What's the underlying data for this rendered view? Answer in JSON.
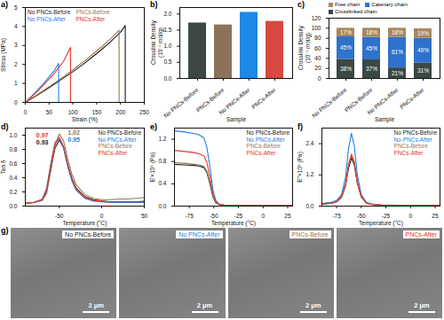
{
  "chart_data": [
    {
      "type": "line",
      "title": "a)",
      "xlabel": "Strain (%)",
      "ylabel": "Stress (MPa)",
      "xlim": [
        0,
        250
      ],
      "xticks": [
        0,
        50,
        100,
        150,
        200,
        250
      ],
      "ylim": [
        0,
        5
      ],
      "yticks": [
        0,
        1,
        2,
        3,
        4,
        5
      ],
      "legend": "top-left",
      "series": [
        {
          "name": "No PNCs-Before",
          "color": "#1a1a1a",
          "x": [
            0,
            20,
            40,
            60,
            80,
            100,
            120,
            140,
            160,
            180,
            200,
            210,
            210
          ],
          "values": [
            0,
            0.3,
            0.62,
            0.95,
            1.28,
            1.62,
            1.98,
            2.37,
            2.78,
            3.22,
            3.7,
            4.05,
            0
          ]
        },
        {
          "name": "PNCs-Before",
          "color": "#9a7650",
          "x": [
            0,
            20,
            40,
            60,
            80,
            100,
            120,
            140,
            160,
            180,
            197,
            197
          ],
          "values": [
            0,
            0.32,
            0.66,
            1.0,
            1.35,
            1.72,
            2.1,
            2.5,
            2.92,
            3.37,
            3.8,
            0
          ]
        },
        {
          "name": "No PNCs-After",
          "color": "#1f80e8",
          "x": [
            0,
            20,
            40,
            60,
            70,
            70
          ],
          "values": [
            0,
            0.5,
            1.05,
            1.65,
            2.05,
            0
          ]
        },
        {
          "name": "PNCs-After",
          "color": "#e8352b",
          "x": [
            0,
            20,
            40,
            60,
            80,
            95,
            95
          ],
          "values": [
            0,
            0.45,
            0.95,
            1.5,
            2.15,
            2.9,
            0
          ]
        }
      ]
    },
    {
      "type": "bar",
      "title": "b)",
      "xlabel": "Sample",
      "ylabel": "Crosslink Density (10⁻⁴ mol/g)",
      "categories": [
        "No PNCs-Before",
        "PNCs-Before",
        "No PNCs-After",
        "PNCs-After"
      ],
      "values": [
        1.72,
        1.66,
        2.05,
        1.77
      ],
      "colors": [
        "#3b4846",
        "#8c7258",
        "#1f88e8",
        "#d9483e"
      ],
      "ylim": [
        0,
        2.2
      ],
      "yticks": [
        {
          "value": 0,
          "label": "0.0"
        },
        {
          "value": 0.5,
          "label": "0.5"
        },
        {
          "value": 1,
          "label": "1.0"
        },
        {
          "value": 1.5,
          "label": "1.5"
        },
        {
          "value": 2,
          "label": "2.0"
        }
      ]
    },
    {
      "type": "bar",
      "stacked": true,
      "data_labels": true,
      "title": "c)",
      "xlabel": "Sample",
      "ylabel": "Crosslink Density (10⁻⁴ mol/g)",
      "categories": [
        "No PNCs-Before",
        "PNCs-Before",
        "No PNCs-After",
        "PNCs-After"
      ],
      "ylim": [
        0,
        120
      ],
      "yticks": [
        0,
        20,
        40,
        60,
        80,
        100,
        120
      ],
      "legend": "top",
      "series": [
        {
          "name": "Crosslinked chain",
          "color": "#3b4846",
          "values": [
            38,
            37,
            21,
            31
          ],
          "value_labels": [
            "38%",
            "37%",
            "21%",
            "31%"
          ]
        },
        {
          "name": "Catenary chain",
          "color": "#2f72cc",
          "values": [
            45,
            45,
            61,
            49
          ],
          "value_labels": [
            "45%",
            "45%",
            "61%",
            "49%"
          ]
        },
        {
          "name": "Free chain",
          "color": "#a8875e",
          "values": [
            17,
            18,
            18,
            19
          ],
          "value_labels": [
            "17%",
            "18%",
            "18%",
            "19%"
          ]
        }
      ]
    },
    {
      "type": "line",
      "title": "d)",
      "xlabel": "Temperature (°C)",
      "ylabel": "Tan δ",
      "xlim": [
        -90,
        50
      ],
      "xticks": [
        -50,
        0,
        50
      ],
      "ylim": [
        0,
        1.1
      ],
      "yticks": [
        {
          "value": 0,
          "label": "0.0"
        },
        {
          "value": 0.2,
          "label": "0.2"
        },
        {
          "value": 0.4,
          "label": "0.4"
        },
        {
          "value": 0.6,
          "label": "0.6"
        },
        {
          "value": 0.8,
          "label": "0.8"
        },
        {
          "value": 1,
          "label": "1.0"
        }
      ],
      "legend": "top-right",
      "x": [
        -90,
        -80,
        -70,
        -65,
        -60,
        -55,
        -50,
        -45,
        -40,
        -35,
        -30,
        -20,
        -10,
        0,
        10,
        20,
        30,
        40,
        50
      ],
      "series": [
        {
          "name": "No PNCs-Before",
          "color": "#1a1a1a",
          "values": [
            0.04,
            0.05,
            0.09,
            0.2,
            0.52,
            0.82,
            0.93,
            0.83,
            0.58,
            0.38,
            0.25,
            0.13,
            0.09,
            0.07,
            0.06,
            0.06,
            0.06,
            0.06,
            0.07
          ]
        },
        {
          "name": "No PNCs-After",
          "color": "#1f80e8",
          "values": [
            0.04,
            0.05,
            0.1,
            0.25,
            0.6,
            0.88,
            0.95,
            0.82,
            0.55,
            0.35,
            0.22,
            0.11,
            0.07,
            0.06,
            0.05,
            0.05,
            0.05,
            0.05,
            0.05
          ]
        },
        {
          "name": "PNCs-Before",
          "color": "#9a7650",
          "values": [
            0.04,
            0.05,
            0.08,
            0.18,
            0.5,
            0.85,
            1.02,
            0.92,
            0.66,
            0.44,
            0.3,
            0.16,
            0.11,
            0.09,
            0.09,
            0.1,
            0.1,
            0.11,
            0.12
          ]
        },
        {
          "name": "PNCs-After",
          "color": "#e8352b",
          "values": [
            0.04,
            0.05,
            0.09,
            0.22,
            0.58,
            0.9,
            0.97,
            0.84,
            0.58,
            0.37,
            0.24,
            0.12,
            0.08,
            0.07,
            0.06,
            0.06,
            0.06,
            0.06,
            0.06
          ]
        }
      ],
      "annotations": [
        {
          "text": "0.97",
          "x": -70,
          "y": 1.0,
          "color": "#e8352b"
        },
        {
          "text": "0.93",
          "x": -70,
          "y": 0.9,
          "color": "#1a1a1a"
        },
        {
          "text": "1.02",
          "x": -33,
          "y": 1.04,
          "color": "#9a7650"
        },
        {
          "text": "0.95",
          "x": -33,
          "y": 0.94,
          "color": "#1f80e8"
        }
      ]
    },
    {
      "type": "line",
      "title": "e)",
      "xlabel": "Temperature (°C)",
      "ylabel": "E'×10⁹ (Pa)",
      "xlim": [
        -90,
        30
      ],
      "xticks": [
        -75,
        -50,
        -25,
        0,
        25
      ],
      "ylim": [
        0,
        1.4
      ],
      "yticks": [
        {
          "value": 0,
          "label": "0.0"
        },
        {
          "value": 0.4,
          "label": "0.4"
        },
        {
          "value": 0.8,
          "label": "0.8"
        },
        {
          "value": 1.2,
          "label": "1.2"
        }
      ],
      "legend": "top-right",
      "x": [
        -90,
        -80,
        -70,
        -65,
        -60,
        -57,
        -54,
        -51,
        -48,
        -45,
        -40,
        -30,
        -20,
        -10,
        0,
        10,
        20,
        30
      ],
      "series": [
        {
          "name": "No PNCs-Before",
          "color": "#1a1a1a",
          "values": [
            0.75,
            0.74,
            0.73,
            0.72,
            0.69,
            0.6,
            0.4,
            0.17,
            0.06,
            0.03,
            0.02,
            0.015,
            0.01,
            0.01,
            0.01,
            0.01,
            0.01,
            0.01
          ]
        },
        {
          "name": "No PNCs-After",
          "color": "#1f80e8",
          "values": [
            1.35,
            1.33,
            1.3,
            1.28,
            1.22,
            1.05,
            0.7,
            0.3,
            0.1,
            0.04,
            0.02,
            0.015,
            0.01,
            0.01,
            0.01,
            0.01,
            0.01,
            0.01
          ]
        },
        {
          "name": "PNCs-Before",
          "color": "#9a7650",
          "values": [
            0.78,
            0.77,
            0.75,
            0.74,
            0.71,
            0.62,
            0.42,
            0.18,
            0.06,
            0.03,
            0.02,
            0.015,
            0.01,
            0.01,
            0.01,
            0.01,
            0.01,
            0.01
          ]
        },
        {
          "name": "PNCs-After",
          "color": "#e8352b",
          "values": [
            1.0,
            0.98,
            0.96,
            0.94,
            0.9,
            0.78,
            0.52,
            0.22,
            0.08,
            0.03,
            0.02,
            0.015,
            0.01,
            0.01,
            0.01,
            0.01,
            0.01,
            0.01
          ]
        }
      ]
    },
    {
      "type": "line",
      "title": "f)",
      "xlabel": "Temperature (°C)",
      "ylabel": "E''×10⁸ (Pa)",
      "xlim": [
        -90,
        30
      ],
      "xticks": [
        -75,
        -50,
        -25,
        0,
        25
      ],
      "ylim": [
        0,
        3.0
      ],
      "yticks": [
        {
          "value": 0,
          "label": "0.0"
        },
        {
          "value": 1.2,
          "label": "1.2"
        },
        {
          "value": 2.4,
          "label": "2.4"
        }
      ],
      "legend": "top-right",
      "x": [
        -90,
        -80,
        -75,
        -70,
        -66,
        -63,
        -60,
        -57,
        -54,
        -50,
        -45,
        -40,
        -30,
        -20,
        -10,
        0,
        10,
        20,
        30
      ],
      "series": [
        {
          "name": "No PNCs-Before",
          "color": "#1a1a1a",
          "values": [
            0.07,
            0.11,
            0.16,
            0.34,
            0.78,
            1.45,
            1.85,
            1.58,
            0.88,
            0.35,
            0.12,
            0.07,
            0.04,
            0.03,
            0.03,
            0.03,
            0.03,
            0.03,
            0.03
          ]
        },
        {
          "name": "No PNCs-After",
          "color": "#1f80e8",
          "values": [
            0.1,
            0.15,
            0.22,
            0.45,
            1.1,
            2.2,
            2.8,
            2.3,
            1.2,
            0.45,
            0.15,
            0.08,
            0.05,
            0.04,
            0.03,
            0.03,
            0.03,
            0.03,
            0.03
          ]
        },
        {
          "name": "PNCs-Before",
          "color": "#9a7650",
          "values": [
            0.08,
            0.12,
            0.17,
            0.36,
            0.82,
            1.55,
            1.95,
            1.65,
            0.9,
            0.36,
            0.12,
            0.07,
            0.04,
            0.03,
            0.03,
            0.03,
            0.03,
            0.03,
            0.03
          ]
        },
        {
          "name": "PNCs-After",
          "color": "#e8352b",
          "values": [
            0.08,
            0.12,
            0.18,
            0.38,
            0.85,
            1.6,
            2.0,
            1.7,
            0.95,
            0.38,
            0.13,
            0.07,
            0.04,
            0.03,
            0.03,
            0.03,
            0.03,
            0.03,
            0.03
          ]
        }
      ]
    }
  ],
  "micrographs": {
    "title": "g)",
    "scale_bar": "2 μm",
    "panels": [
      {
        "label": "No PNCs-Before",
        "color": "#1a1a1a"
      },
      {
        "label": "No PNCs-After",
        "color": "#1f80e8"
      },
      {
        "label": "PNCs-Before",
        "color": "#9a7650"
      },
      {
        "label": "PNCs-After",
        "color": "#e8352b"
      }
    ]
  }
}
